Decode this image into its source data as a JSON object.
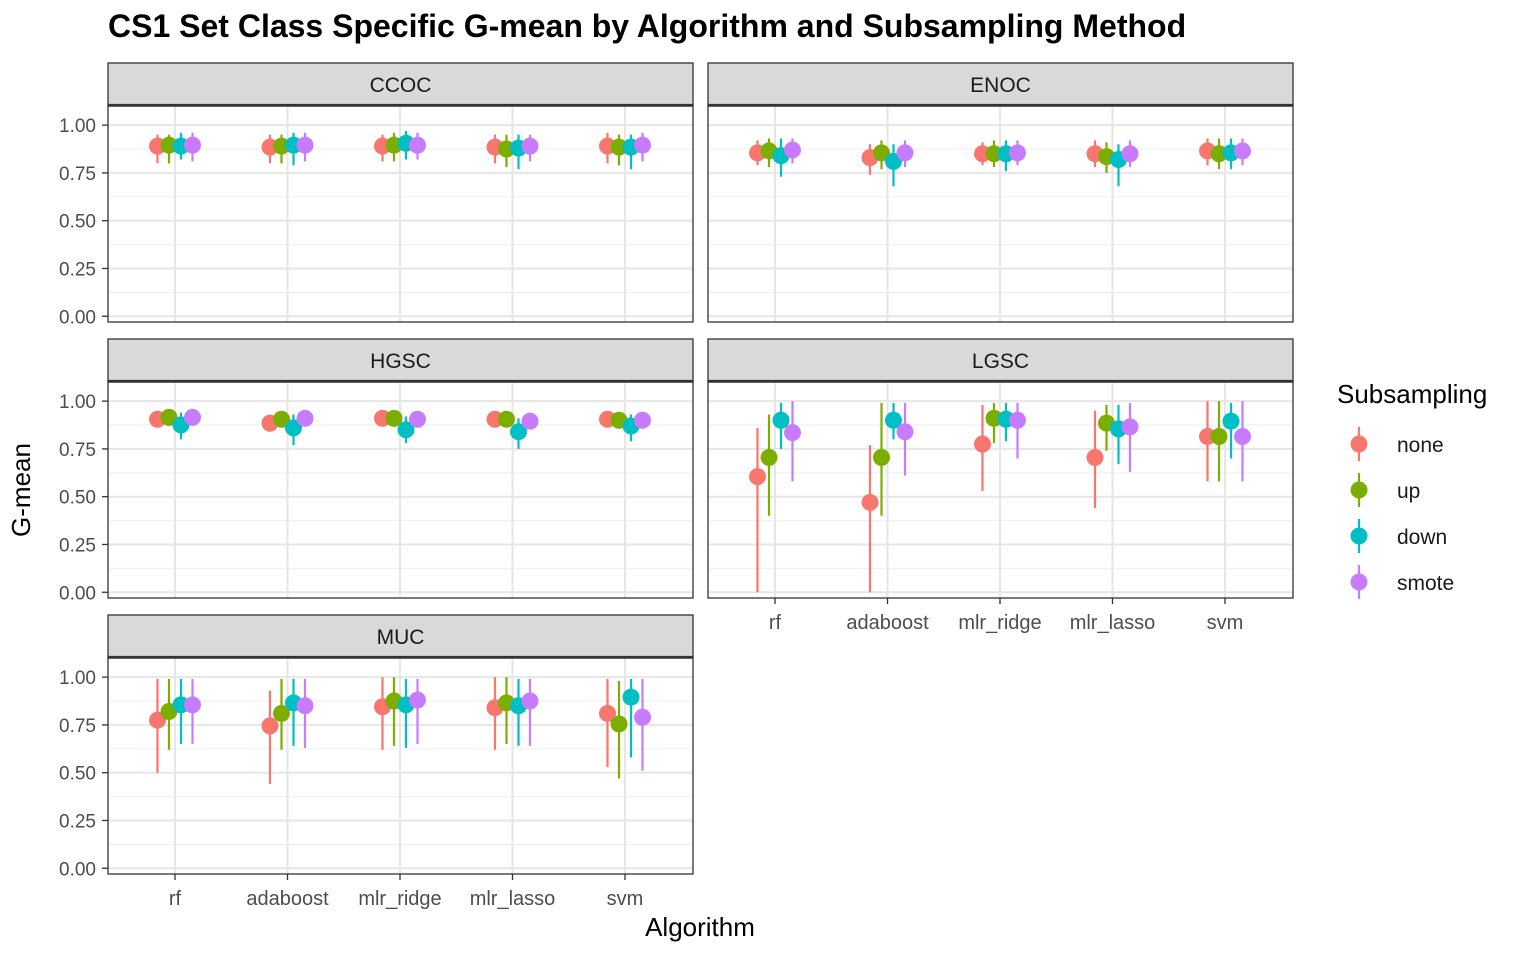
{
  "chart_data": {
    "type": "scatter",
    "subtype": "faceted point-range (estimate with interval)",
    "title": "CS1 Set Class Specific G-mean by Algorithm and Subsampling Method",
    "xlabel": "Algorithm",
    "ylabel": "G-mean",
    "categories": [
      "rf",
      "adaboost",
      "mlr_ridge",
      "mlr_lasso",
      "svm"
    ],
    "ylim": [
      0,
      1
    ],
    "yticks": [
      "0.00",
      "0.25",
      "0.50",
      "0.75",
      "1.00"
    ],
    "grid": true,
    "legend": {
      "title": "Subsampling",
      "position": "right",
      "entries": [
        {
          "name": "none",
          "color": "#F8766D"
        },
        {
          "name": "up",
          "color": "#7CAE00"
        },
        {
          "name": "down",
          "color": "#00BFC4"
        },
        {
          "name": "smote",
          "color": "#C77CFF"
        }
      ]
    },
    "facets": [
      {
        "name": "CCOC",
        "series": [
          {
            "name": "none",
            "values": [
              0.89,
              0.885,
              0.89,
              0.885,
              0.89
            ],
            "lower": [
              0.8,
              0.8,
              0.81,
              0.8,
              0.8
            ],
            "upper": [
              0.95,
              0.95,
              0.95,
              0.95,
              0.96
            ]
          },
          {
            "name": "up",
            "values": [
              0.895,
              0.89,
              0.895,
              0.875,
              0.885
            ],
            "lower": [
              0.8,
              0.8,
              0.81,
              0.78,
              0.79
            ],
            "upper": [
              0.95,
              0.95,
              0.96,
              0.95,
              0.95
            ]
          },
          {
            "name": "down",
            "values": [
              0.89,
              0.895,
              0.905,
              0.88,
              0.885
            ],
            "lower": [
              0.82,
              0.79,
              0.82,
              0.77,
              0.77
            ],
            "upper": [
              0.96,
              0.96,
              0.97,
              0.95,
              0.95
            ]
          },
          {
            "name": "smote",
            "values": [
              0.895,
              0.895,
              0.895,
              0.89,
              0.895
            ],
            "lower": [
              0.81,
              0.81,
              0.82,
              0.81,
              0.81
            ],
            "upper": [
              0.96,
              0.96,
              0.96,
              0.95,
              0.96
            ]
          }
        ]
      },
      {
        "name": "ENOC",
        "series": [
          {
            "name": "none",
            "values": [
              0.855,
              0.83,
              0.85,
              0.85,
              0.865
            ],
            "lower": [
              0.79,
              0.74,
              0.79,
              0.78,
              0.79
            ],
            "upper": [
              0.92,
              0.9,
              0.91,
              0.92,
              0.93
            ]
          },
          {
            "name": "up",
            "values": [
              0.865,
              0.855,
              0.85,
              0.835,
              0.85
            ],
            "lower": [
              0.78,
              0.77,
              0.78,
              0.75,
              0.77
            ],
            "upper": [
              0.93,
              0.92,
              0.92,
              0.91,
              0.93
            ]
          },
          {
            "name": "down",
            "values": [
              0.84,
              0.81,
              0.85,
              0.82,
              0.855
            ],
            "lower": [
              0.73,
              0.68,
              0.76,
              0.68,
              0.77
            ],
            "upper": [
              0.93,
              0.9,
              0.92,
              0.9,
              0.93
            ]
          },
          {
            "name": "smote",
            "values": [
              0.87,
              0.855,
              0.855,
              0.85,
              0.865
            ],
            "lower": [
              0.8,
              0.78,
              0.79,
              0.78,
              0.79
            ],
            "upper": [
              0.93,
              0.92,
              0.92,
              0.92,
              0.93
            ]
          }
        ]
      },
      {
        "name": "HGSC",
        "series": [
          {
            "name": "none",
            "values": [
              0.905,
              0.885,
              0.91,
              0.905,
              0.905
            ],
            "lower": [
              0.88,
              0.84,
              0.88,
              0.87,
              0.87
            ],
            "upper": [
              0.93,
              0.92,
              0.94,
              0.93,
              0.93
            ]
          },
          {
            "name": "up",
            "values": [
              0.915,
              0.905,
              0.91,
              0.905,
              0.9
            ],
            "lower": [
              0.88,
              0.87,
              0.88,
              0.87,
              0.87
            ],
            "upper": [
              0.95,
              0.94,
              0.94,
              0.93,
              0.93
            ]
          },
          {
            "name": "down",
            "values": [
              0.875,
              0.86,
              0.85,
              0.84,
              0.87
            ],
            "lower": [
              0.8,
              0.77,
              0.78,
              0.75,
              0.79
            ],
            "upper": [
              0.94,
              0.93,
              0.92,
              0.91,
              0.93
            ]
          },
          {
            "name": "smote",
            "values": [
              0.915,
              0.91,
              0.905,
              0.895,
              0.9
            ],
            "lower": [
              0.88,
              0.88,
              0.87,
              0.86,
              0.87
            ],
            "upper": [
              0.95,
              0.94,
              0.94,
              0.93,
              0.93
            ]
          }
        ]
      },
      {
        "name": "LGSC",
        "series": [
          {
            "name": "none",
            "values": [
              0.605,
              0.47,
              0.775,
              0.705,
              0.815
            ],
            "lower": [
              0.0,
              0.0,
              0.53,
              0.44,
              0.58
            ],
            "upper": [
              0.86,
              0.77,
              0.98,
              0.95,
              1.0
            ]
          },
          {
            "name": "up",
            "values": [
              0.705,
              0.705,
              0.91,
              0.885,
              0.815
            ],
            "lower": [
              0.4,
              0.4,
              0.78,
              0.74,
              0.58
            ],
            "upper": [
              0.93,
              0.99,
              0.99,
              0.98,
              1.0
            ]
          },
          {
            "name": "down",
            "values": [
              0.9,
              0.9,
              0.905,
              0.855,
              0.895
            ],
            "lower": [
              0.75,
              0.8,
              0.79,
              0.67,
              0.7
            ],
            "upper": [
              0.99,
              0.99,
              0.99,
              0.98,
              0.99
            ]
          },
          {
            "name": "smote",
            "values": [
              0.835,
              0.84,
              0.9,
              0.865,
              0.815
            ],
            "lower": [
              0.58,
              0.61,
              0.7,
              0.63,
              0.58
            ],
            "upper": [
              1.0,
              0.99,
              0.99,
              0.99,
              1.0
            ]
          }
        ]
      },
      {
        "name": "MUC",
        "series": [
          {
            "name": "none",
            "values": [
              0.775,
              0.745,
              0.845,
              0.84,
              0.81
            ],
            "lower": [
              0.5,
              0.44,
              0.62,
              0.62,
              0.53
            ],
            "upper": [
              0.99,
              0.93,
              1.0,
              1.0,
              0.99
            ]
          },
          {
            "name": "up",
            "values": [
              0.82,
              0.81,
              0.875,
              0.865,
              0.755
            ],
            "lower": [
              0.62,
              0.62,
              0.64,
              0.65,
              0.47
            ],
            "upper": [
              0.99,
              0.99,
              1.0,
              1.0,
              0.98
            ]
          },
          {
            "name": "down",
            "values": [
              0.855,
              0.865,
              0.855,
              0.85,
              0.895
            ],
            "lower": [
              0.65,
              0.64,
              0.63,
              0.64,
              0.58
            ],
            "upper": [
              0.99,
              0.99,
              0.99,
              0.99,
              0.99
            ]
          },
          {
            "name": "smote",
            "values": [
              0.855,
              0.85,
              0.88,
              0.875,
              0.79
            ],
            "lower": [
              0.65,
              0.63,
              0.65,
              0.64,
              0.51
            ],
            "upper": [
              0.99,
              0.99,
              0.99,
              0.99,
              0.99
            ]
          }
        ]
      }
    ]
  }
}
